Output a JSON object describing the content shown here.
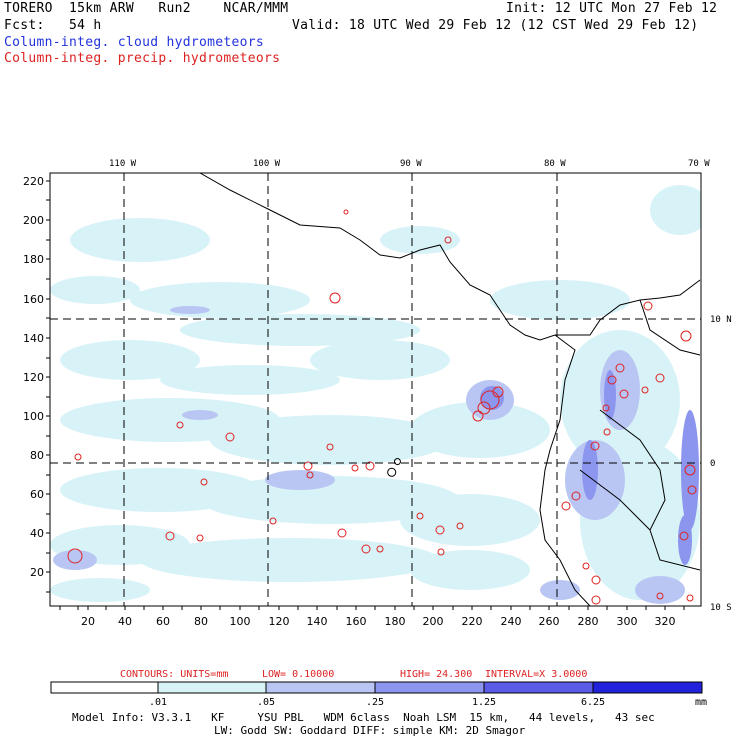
{
  "header": {
    "model": "TORERO  15km ARW   Run2    NCAR/MMM",
    "init": "Init: 12 UTC Mon 27 Feb 12",
    "fcst": "Fcst:   54 h",
    "valid": "Valid: 18 UTC Wed 29 Feb 12 (12 CST Wed 29 Feb 12)",
    "legend_cloud": "Column-integ. cloud hydrometeors",
    "legend_precip": "Column-integ. precip. hydrometeors"
  },
  "colors": {
    "cloud": "#2233dd",
    "precip": "#dd2222",
    "shade1": "#d8f3f7",
    "shade2": "#b9c6f3",
    "shade3": "#8d96ee",
    "shade4": "#5a5ce8",
    "shade5": "#2222dd"
  },
  "axes": {
    "top_lon_labels": [
      "110 W",
      "100 W",
      "90 W",
      "80 W",
      "70 W"
    ],
    "right_lat_labels": [
      "10 N",
      "0",
      "10 S"
    ],
    "y_ticks": [
      "220",
      "200",
      "180",
      "160",
      "140",
      "120",
      "100",
      "80",
      "60",
      "40",
      "20"
    ],
    "x_ticks": [
      "20",
      "40",
      "60",
      "80",
      "100",
      "120",
      "140",
      "160",
      "180",
      "200",
      "220",
      "240",
      "260",
      "280",
      "300",
      "320"
    ]
  },
  "contour_info": {
    "units": "CONTOURS:  UNITS=mm",
    "low": "LOW= 0.10000",
    "high": "HIGH=  24.300",
    "interval": "INTERVAL=X  3.0000"
  },
  "colorbar": {
    "labels": [
      ".01",
      ".05",
      ".25",
      "1.25",
      "6.25"
    ],
    "unit": "mm"
  },
  "footer": {
    "line1": "Model Info: V3.3.1   KF     YSU PBL   WDM 6class  Noah LSM  15 km,   44 levels,   43 sec",
    "line2": "LW: Godd SW: Goddard DIFF: simple KM: 2D Smagor"
  }
}
